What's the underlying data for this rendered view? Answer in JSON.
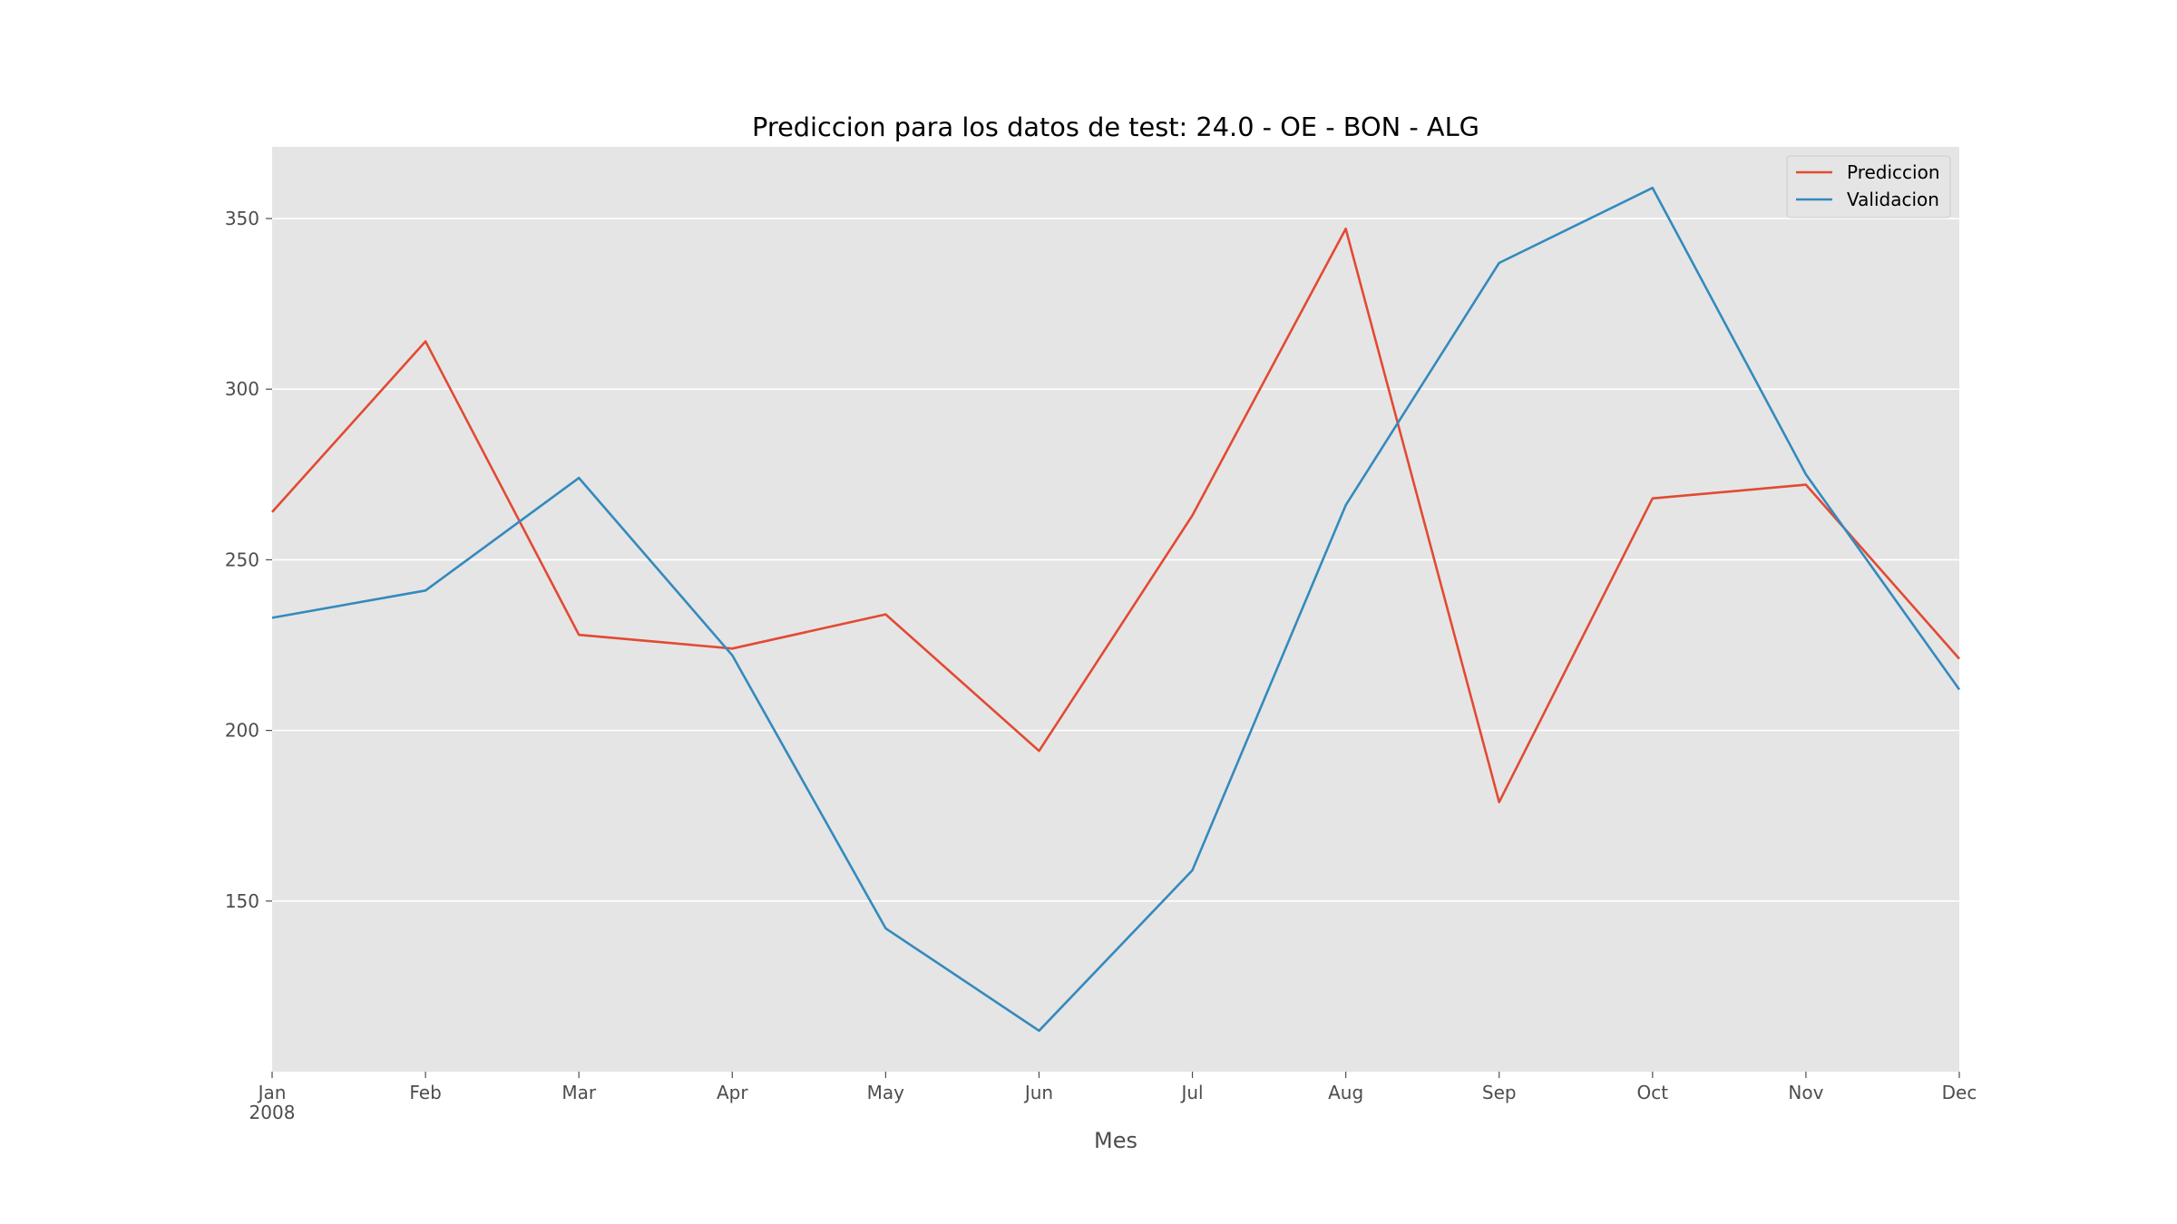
{
  "chart_data": {
    "type": "line",
    "title": "Prediccion para los datos de test: 24.0 - OE - BON - ALG",
    "xlabel": "Mes",
    "ylabel": "",
    "x": [
      "2008-01",
      "2008-02",
      "2008-03",
      "2008-04",
      "2008-05",
      "2008-06",
      "2008-07",
      "2008-08",
      "2008-09",
      "2008-10",
      "2008-11",
      "2008-12"
    ],
    "x_tick_labels": [
      "Jan",
      "Feb",
      "Mar",
      "Apr",
      "May",
      "Jun",
      "Jul",
      "Aug",
      "Sep",
      "Oct",
      "Nov",
      "Dec"
    ],
    "x_year_label": "2008",
    "ylim": [
      100,
      371
    ],
    "y_ticks": [
      150,
      200,
      250,
      300,
      350
    ],
    "grid": true,
    "legend_position": "top-right",
    "series": [
      {
        "name": "Prediccion",
        "color": "#e24a33",
        "values": [
          264,
          314,
          228,
          224,
          234,
          194,
          263,
          347,
          179,
          268,
          272,
          221
        ]
      },
      {
        "name": "Validacion",
        "color": "#348abd",
        "values": [
          233,
          241,
          274,
          222,
          142,
          112,
          159,
          266,
          337,
          359,
          275,
          212
        ]
      }
    ]
  }
}
